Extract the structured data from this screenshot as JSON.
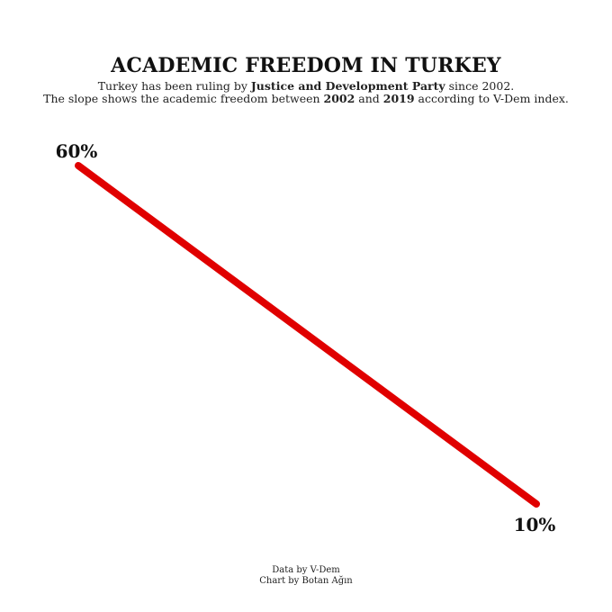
{
  "chart_data": {
    "type": "line",
    "title": "ACADEMIC FREEDOM IN TURKEY",
    "subtitle": [
      [
        {
          "text": "Turkey has been ruling by ",
          "bold": false
        },
        {
          "text": "Justice and Development Party",
          "bold": true
        },
        {
          "text": " since 2002.",
          "bold": false
        }
      ],
      [
        {
          "text": "The slope shows the academic freedom between ",
          "bold": false
        },
        {
          "text": "2002",
          "bold": true
        },
        {
          "text": " and ",
          "bold": false
        },
        {
          "text": "2019",
          "bold": true
        },
        {
          "text": " according to V-Dem index.",
          "bold": false
        }
      ]
    ],
    "x": [
      2002,
      2019
    ],
    "values": [
      60,
      10
    ],
    "data_labels": [
      "60%",
      "10%"
    ],
    "ylim": [
      10,
      60
    ],
    "grid": false,
    "line_color": "#e00000"
  },
  "footer": {
    "source": "Data by V-Dem",
    "credit": "Chart by Botan Ağın"
  }
}
